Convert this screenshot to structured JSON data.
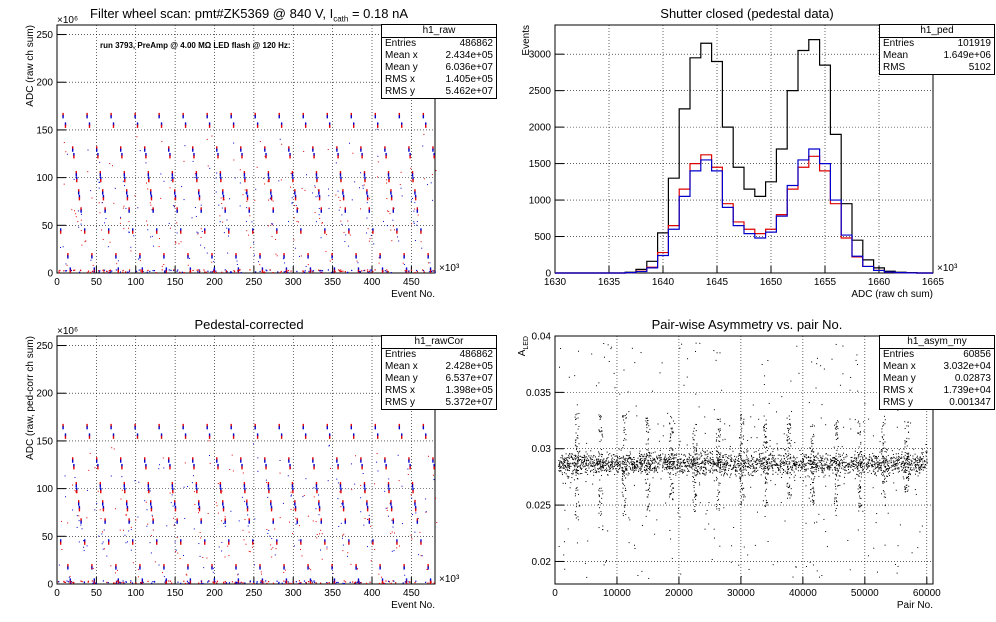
{
  "panels": [
    {
      "title_main": "Filter wheel scan: pmt#ZK5369 @   840 V, I",
      "title_sub": "cath",
      "title_tail": " = 0.18 nA",
      "annotation": "run 3793, PreAmp @ 4.00 MΩ LED flash @  120 Hz:",
      "stats": {
        "name": "h1_raw",
        "rows": [
          [
            "Entries",
            "486862"
          ],
          [
            "Mean x",
            "2.434e+05"
          ],
          [
            "Mean y",
            "6.036e+07"
          ],
          [
            "RMS x",
            "1.405e+05"
          ],
          [
            "RMS y",
            "5.462e+07"
          ]
        ]
      }
    },
    {
      "title_main": "Shutter closed (pedestal data)",
      "stats": {
        "name": "h1_ped",
        "rows": [
          [
            "Entries",
            "101919"
          ],
          [
            "Mean",
            "1.649e+06"
          ],
          [
            "RMS",
            "5102"
          ]
        ]
      }
    },
    {
      "title_main": "Pedestal-corrected",
      "stats": {
        "name": "h1_rawCor",
        "rows": [
          [
            "Entries",
            "486862"
          ],
          [
            "Mean x",
            "2.428e+05"
          ],
          [
            "Mean y",
            "6.537e+07"
          ],
          [
            "RMS x",
            "1.398e+05"
          ],
          [
            "RMS y",
            "5.372e+07"
          ]
        ]
      }
    },
    {
      "title_main": "Pair-wise Asymmetry vs. pair No.",
      "stats": {
        "name": "h1_asym_my",
        "rows": [
          [
            "Entries",
            "60856"
          ],
          [
            "Mean x",
            "3.032e+04"
          ],
          [
            "Mean y",
            "0.02873"
          ],
          [
            "RMS x",
            "1.739e+04"
          ],
          [
            "RMS y",
            "0.001347"
          ]
        ]
      }
    }
  ],
  "chart_data": [
    {
      "type": "scatter",
      "title": "Filter wheel scan: pmt#ZK5369 @   840 V, Icath = 0.18 nA",
      "xlabel": "Event No.",
      "ylabel": "ADC (raw ch sum)",
      "x_multiplier": "×10³",
      "y_multiplier": "×10⁶",
      "xlim": [
        0,
        480
      ],
      "ylim": [
        0,
        260
      ],
      "xticks": [
        0,
        50,
        100,
        150,
        200,
        250,
        300,
        350,
        400,
        450
      ],
      "yticks": [
        0,
        50,
        100,
        150,
        200,
        250
      ],
      "grid": true,
      "cycle_period": 30.5,
      "cycle_start": 3,
      "cycles": 16,
      "levels": [
        {
          "y": 165,
          "colors": [
            "red",
            "blue"
          ],
          "offset": 0.15
        },
        {
          "y": 155,
          "colors": [
            "blue",
            "red"
          ],
          "offset": 0.25
        },
        {
          "y": 130,
          "colors": [
            "red",
            "blue"
          ],
          "offset": 0.55
        },
        {
          "y": 123,
          "colors": [
            "blue",
            "red"
          ],
          "offset": 0.6
        },
        {
          "y": 104,
          "colors": [
            "red",
            "blue"
          ],
          "offset": 0.7
        },
        {
          "y": 98,
          "colors": [
            "blue",
            "red"
          ],
          "offset": 0.72
        },
        {
          "y": 85,
          "colors": [
            "red",
            "blue"
          ],
          "offset": 0.8
        },
        {
          "y": 79,
          "colors": [
            "blue",
            "red"
          ],
          "offset": 0.83
        },
        {
          "y": 66,
          "colors": [
            "red",
            "blue"
          ],
          "offset": 0.9
        },
        {
          "y": 44,
          "colors": [
            "blue",
            "red"
          ],
          "offset": 0.05
        },
        {
          "y": 18,
          "colors": [
            "red",
            "blue"
          ],
          "offset": 0.35
        },
        {
          "y": 3,
          "colors": [
            "blue",
            "red"
          ],
          "offset": 0.45
        }
      ]
    },
    {
      "type": "line",
      "title": "Shutter closed (pedestal data)",
      "xlabel": "ADC (raw ch sum)",
      "ylabel": "Events",
      "x_multiplier": "×10³",
      "xlim": [
        1630,
        1665
      ],
      "ylim": [
        0,
        3400
      ],
      "xticks": [
        1630,
        1635,
        1640,
        1645,
        1650,
        1655,
        1660,
        1665
      ],
      "yticks": [
        0,
        500,
        1000,
        1500,
        2000,
        2500,
        3000
      ],
      "grid": true,
      "x": [
        1637.0,
        1638.0,
        1639.0,
        1640.0,
        1641.0,
        1642.0,
        1643.0,
        1644.0,
        1645.0,
        1646.0,
        1647.0,
        1648.0,
        1649.0,
        1650.0,
        1651.0,
        1652.0,
        1653.0,
        1654.0,
        1655.0,
        1656.0,
        1657.0,
        1658.0,
        1659.0,
        1660.0,
        1661.0,
        1662.0,
        1663.0
      ],
      "series": [
        {
          "color": "#000000",
          "values": [
            10,
            50,
            160,
            550,
            1300,
            2250,
            2950,
            3150,
            2900,
            2000,
            1450,
            1150,
            1050,
            1250,
            1700,
            2500,
            3050,
            3200,
            2850,
            1900,
            950,
            450,
            180,
            70,
            25,
            10,
            5
          ]
        },
        {
          "color": "#dd0000",
          "values": [
            5,
            25,
            80,
            280,
            650,
            1150,
            1500,
            1620,
            1450,
            950,
            700,
            600,
            540,
            600,
            800,
            1150,
            1450,
            1600,
            1400,
            950,
            480,
            220,
            90,
            35,
            12,
            5,
            2
          ]
        },
        {
          "color": "#0000cc",
          "values": [
            5,
            20,
            70,
            240,
            600,
            1050,
            1400,
            1550,
            1400,
            900,
            650,
            540,
            480,
            560,
            780,
            1200,
            1550,
            1700,
            1500,
            1000,
            520,
            230,
            90,
            35,
            12,
            5,
            2
          ]
        }
      ]
    },
    {
      "type": "scatter",
      "title": "Pedestal-corrected",
      "xlabel": "Event No.",
      "ylabel": "ADC (raw, ped-corr ch sum)",
      "x_multiplier": "×10³",
      "y_multiplier": "×10⁶",
      "xlim": [
        0,
        480
      ],
      "ylim": [
        0,
        260
      ],
      "xticks": [
        0,
        50,
        100,
        150,
        200,
        250,
        300,
        350,
        400,
        450
      ],
      "yticks": [
        0,
        50,
        100,
        150,
        200,
        250
      ],
      "grid": true,
      "cycle_period": 30.5,
      "cycle_start": 3,
      "cycles": 16,
      "levels": [
        {
          "y": 165,
          "colors": [
            "red",
            "blue"
          ],
          "offset": 0.15
        },
        {
          "y": 155,
          "colors": [
            "blue",
            "red"
          ],
          "offset": 0.25
        },
        {
          "y": 130,
          "colors": [
            "red",
            "blue"
          ],
          "offset": 0.55
        },
        {
          "y": 123,
          "colors": [
            "blue",
            "red"
          ],
          "offset": 0.6
        },
        {
          "y": 104,
          "colors": [
            "red",
            "blue"
          ],
          "offset": 0.7
        },
        {
          "y": 98,
          "colors": [
            "blue",
            "red"
          ],
          "offset": 0.72
        },
        {
          "y": 85,
          "colors": [
            "red",
            "blue"
          ],
          "offset": 0.8
        },
        {
          "y": 79,
          "colors": [
            "blue",
            "red"
          ],
          "offset": 0.83
        },
        {
          "y": 66,
          "colors": [
            "red",
            "blue"
          ],
          "offset": 0.9
        },
        {
          "y": 44,
          "colors": [
            "blue",
            "red"
          ],
          "offset": 0.05
        },
        {
          "y": 18,
          "colors": [
            "red",
            "blue"
          ],
          "offset": 0.35
        },
        {
          "y": 3,
          "colors": [
            "blue",
            "red"
          ],
          "offset": 0.45
        }
      ]
    },
    {
      "type": "scatter",
      "title": "Pair-wise Asymmetry vs. pair No.",
      "xlabel": "Pair No.",
      "ylabel": "A_LED",
      "xlim": [
        0,
        61000
      ],
      "ylim": [
        0.018,
        0.04
      ],
      "xticks": [
        0,
        10000,
        20000,
        30000,
        40000,
        50000,
        60000
      ],
      "yticks": [
        0.02,
        0.025,
        0.03,
        0.035,
        0.04
      ],
      "grid": true,
      "band_center": 0.0287,
      "band_rms": 0.0005,
      "spike_x": [
        3500,
        7300,
        11100,
        14900,
        18700,
        22500,
        26300,
        30100,
        33900,
        37700,
        41500,
        45300,
        49100,
        52900,
        56700
      ],
      "spike_low": [
        0.0235,
        0.0228,
        0.0242,
        0.0245,
        0.0255,
        0.024,
        0.0245,
        0.025,
        0.0248,
        0.0255,
        0.025,
        0.024,
        0.0245,
        0.0248,
        0.0262
      ],
      "spike_high": [
        0.0335,
        0.0335,
        0.0332,
        0.033,
        0.033,
        0.0328,
        0.033,
        0.0332,
        0.0333,
        0.033,
        0.0325,
        0.0326,
        0.0325,
        0.033,
        0.0325
      ]
    }
  ]
}
